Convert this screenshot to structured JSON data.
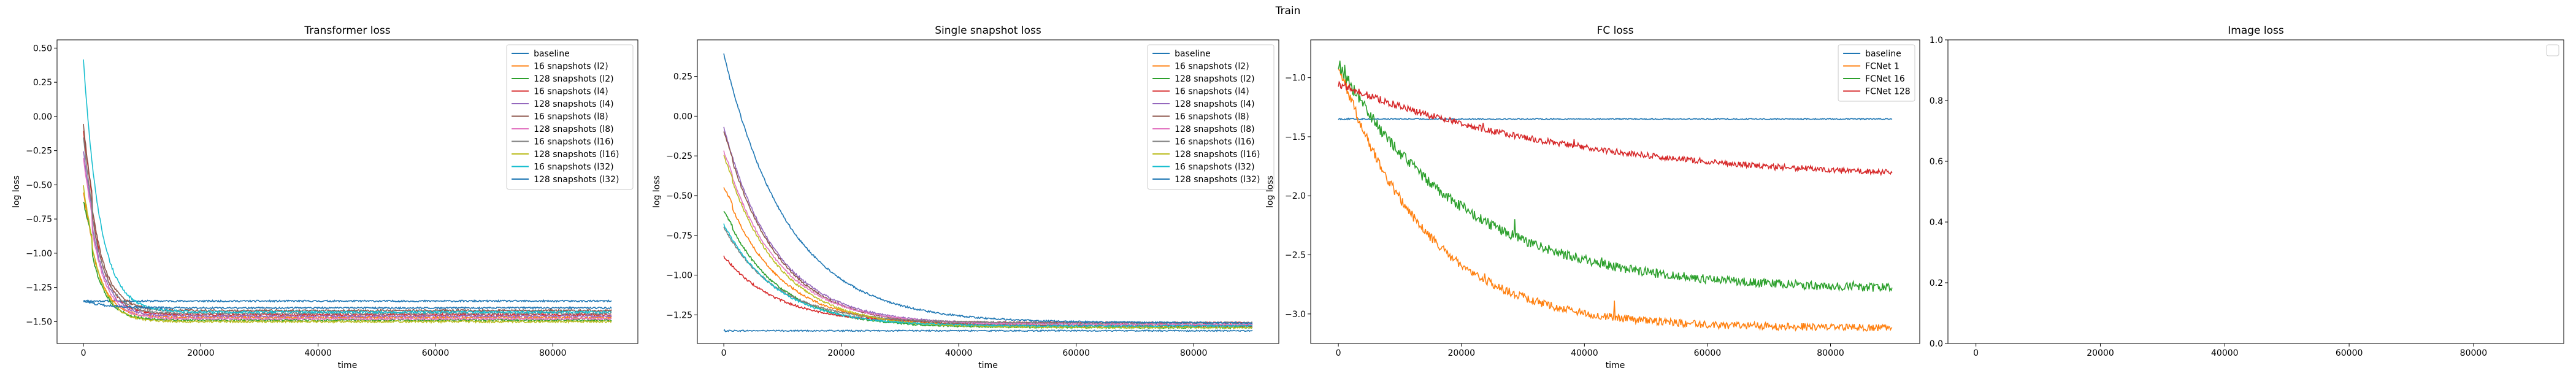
{
  "figure": {
    "suptitle": "Train"
  },
  "colors": {
    "c0": "#1f77b4",
    "c1": "#ff7f0e",
    "c2": "#2ca02c",
    "c3": "#d62728",
    "c4": "#9467bd",
    "c5": "#8c564b",
    "c6": "#e377c2",
    "c7": "#7f7f7f",
    "c8": "#bcbd22",
    "c9": "#17becf"
  },
  "chart_data": [
    {
      "type": "line",
      "title": "Transformer loss",
      "xlabel": "time",
      "ylabel": "log loss",
      "xlim": [
        -4500,
        94500
      ],
      "ylim": [
        -1.66,
        0.56
      ],
      "xticks": [
        0,
        20000,
        40000,
        60000,
        80000
      ],
      "yticks": [
        -1.5,
        -1.25,
        -1.0,
        -0.75,
        -0.5,
        -0.25,
        0.0,
        0.25,
        0.5
      ],
      "legend": "top-right",
      "series": [
        {
          "name": "baseline",
          "color": "#1f77b4",
          "start": -1.35,
          "peak": -1.35,
          "final": -1.35,
          "tau": 1000,
          "noise": 0.006
        },
        {
          "name": "16 snapshots (l2)",
          "color": "#ff7f0e",
          "start": -0.55,
          "peak": -0.5,
          "final": -1.47,
          "tau": 2500,
          "noise": 0.008
        },
        {
          "name": "128 snapshots (l2)",
          "color": "#2ca02c",
          "start": -0.62,
          "peak": -0.5,
          "final": -1.49,
          "tau": 2500,
          "noise": 0.008
        },
        {
          "name": "16 snapshots (l4)",
          "color": "#d62728",
          "start": -0.1,
          "peak": 0.02,
          "final": -1.45,
          "tau": 2500,
          "noise": 0.008
        },
        {
          "name": "128 snapshots (l4)",
          "color": "#9467bd",
          "start": -0.25,
          "peak": -0.15,
          "final": -1.46,
          "tau": 2500,
          "noise": 0.008
        },
        {
          "name": "16 snapshots (l8)",
          "color": "#8c564b",
          "start": -0.05,
          "peak": 0.04,
          "final": -1.42,
          "tau": 2500,
          "noise": 0.008
        },
        {
          "name": "128 snapshots (l8)",
          "color": "#e377c2",
          "start": -0.3,
          "peak": -0.2,
          "final": -1.48,
          "tau": 2500,
          "noise": 0.008
        },
        {
          "name": "16 snapshots (l16)",
          "color": "#7f7f7f",
          "start": -0.15,
          "peak": -0.08,
          "final": -1.44,
          "tau": 2500,
          "noise": 0.008
        },
        {
          "name": "128 snapshots (l16)",
          "color": "#bcbd22",
          "start": -0.5,
          "peak": -0.45,
          "final": -1.5,
          "tau": 2500,
          "noise": 0.008
        },
        {
          "name": "16 snapshots (l32)",
          "color": "#17becf",
          "start": 0.42,
          "peak": 0.42,
          "final": -1.43,
          "tau": 2800,
          "noise": 0.008
        },
        {
          "name": "128 snapshots (l32)",
          "color": "#1f77b4",
          "start": -1.35,
          "peak": -1.35,
          "final": -1.4,
          "tau": 4000,
          "noise": 0.006
        }
      ]
    },
    {
      "type": "line",
      "title": "Single snapshot loss",
      "xlabel": "time",
      "ylabel": "log loss",
      "xlim": [
        -4500,
        94500
      ],
      "ylim": [
        -1.43,
        0.48
      ],
      "xticks": [
        0,
        20000,
        40000,
        60000,
        80000
      ],
      "yticks": [
        -1.25,
        -1.0,
        -0.75,
        -0.5,
        -0.25,
        0.0,
        0.25
      ],
      "legend": "top-right",
      "series": [
        {
          "name": "baseline",
          "color": "#1f77b4",
          "start": -1.35,
          "peak": -1.35,
          "final": -1.35,
          "tau": 1000,
          "noise": 0.004
        },
        {
          "name": "16 snapshots (l2)",
          "color": "#ff7f0e",
          "start": -0.45,
          "peak": -0.42,
          "final": -1.32,
          "tau": 9000,
          "noise": 0.005
        },
        {
          "name": "128 snapshots (l2)",
          "color": "#2ca02c",
          "start": -0.6,
          "peak": -0.58,
          "final": -1.33,
          "tau": 9000,
          "noise": 0.005
        },
        {
          "name": "16 snapshots (l4)",
          "color": "#d62728",
          "start": -0.88,
          "peak": -0.88,
          "final": -1.3,
          "tau": 9000,
          "noise": 0.005
        },
        {
          "name": "128 snapshots (l4)",
          "color": "#9467bd",
          "start": -0.07,
          "peak": -0.07,
          "final": -1.31,
          "tau": 9000,
          "noise": 0.005
        },
        {
          "name": "16 snapshots (l8)",
          "color": "#8c564b",
          "start": -0.1,
          "peak": -0.08,
          "final": -1.32,
          "tau": 9000,
          "noise": 0.005
        },
        {
          "name": "128 snapshots (l8)",
          "color": "#e377c2",
          "start": -0.22,
          "peak": -0.2,
          "final": -1.31,
          "tau": 9000,
          "noise": 0.005
        },
        {
          "name": "16 snapshots (l16)",
          "color": "#7f7f7f",
          "start": -0.7,
          "peak": -0.7,
          "final": -1.3,
          "tau": 9000,
          "noise": 0.005
        },
        {
          "name": "128 snapshots (l16)",
          "color": "#bcbd22",
          "start": -0.25,
          "peak": -0.23,
          "final": -1.33,
          "tau": 9000,
          "noise": 0.005
        },
        {
          "name": "16 snapshots (l32)",
          "color": "#17becf",
          "start": -0.68,
          "peak": -0.68,
          "final": -1.32,
          "tau": 9000,
          "noise": 0.005
        },
        {
          "name": "128 snapshots (l32)",
          "color": "#1f77b4",
          "start": 0.39,
          "peak": 0.39,
          "final": -1.3,
          "tau": 11000,
          "noise": 0.005
        }
      ]
    },
    {
      "type": "line",
      "title": "FC loss",
      "xlabel": "time",
      "ylabel": "log loss",
      "xlim": [
        -4500,
        94500
      ],
      "ylim": [
        -3.25,
        -0.68
      ],
      "xticks": [
        0,
        20000,
        40000,
        60000,
        80000
      ],
      "yticks": [
        -3.0,
        -2.5,
        -2.0,
        -1.5,
        -1.0
      ],
      "legend": "top-right",
      "series": [
        {
          "name": "baseline",
          "color": "#1f77b4",
          "start": -1.35,
          "peak": -1.35,
          "final": -1.35,
          "tau": 1000,
          "noise": 0.005
        },
        {
          "name": "FCNet 1",
          "color": "#ff7f0e",
          "start": -0.88,
          "peak": -0.88,
          "final": -3.12,
          "tau": 14000,
          "noise": 0.03
        },
        {
          "name": "FCNet 16",
          "color": "#2ca02c",
          "start": -0.88,
          "peak": -0.88,
          "final": -2.8,
          "tau": 20000,
          "noise": 0.035
        },
        {
          "name": "FCNet 128",
          "color": "#d62728",
          "start": -1.05,
          "peak": -1.05,
          "final": -1.88,
          "tau": 38000,
          "noise": 0.02
        }
      ]
    },
    {
      "type": "line",
      "title": "Image loss",
      "xlabel": "",
      "ylabel": "",
      "xlim": [
        -4500,
        94500
      ],
      "ylim": [
        0,
        1
      ],
      "xticks": [
        0,
        20000,
        40000,
        60000,
        80000
      ],
      "yticks": [
        0.0,
        0.2,
        0.4,
        0.6,
        0.8,
        1.0
      ],
      "legend": "top-right",
      "series": []
    }
  ]
}
